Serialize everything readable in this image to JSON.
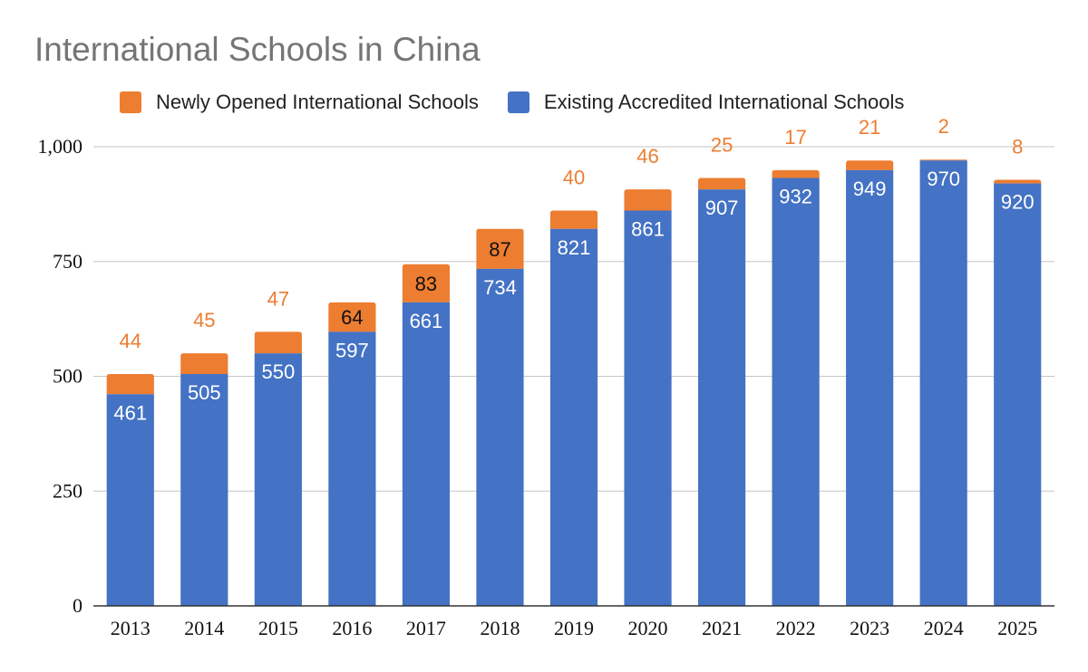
{
  "chart_data": {
    "type": "bar",
    "stacked": true,
    "title": "International Schools in China",
    "categories": [
      "2013",
      "2014",
      "2015",
      "2016",
      "2017",
      "2018",
      "2019",
      "2020",
      "2021",
      "2022",
      "2023",
      "2024",
      "2025"
    ],
    "series": [
      {
        "name": "Existing Accredited International Schools",
        "color": "#4472C4",
        "values": [
          461,
          505,
          550,
          597,
          661,
          734,
          821,
          861,
          907,
          932,
          949,
          970,
          920
        ]
      },
      {
        "name": "Newly Opened International Schools",
        "color": "#ED7D31",
        "values": [
          44,
          45,
          47,
          64,
          83,
          87,
          40,
          46,
          25,
          17,
          21,
          2,
          8
        ]
      }
    ],
    "legend_order": [
      "Newly Opened International Schools",
      "Existing Accredited International Schools"
    ],
    "legend_position": "top",
    "ylim": [
      0,
      1000
    ],
    "y_ticks": [
      0,
      250,
      500,
      750,
      1000
    ],
    "y_tick_labels": [
      "0",
      "250",
      "500",
      "750",
      "1,000"
    ],
    "grid": true,
    "xlabel": "",
    "ylabel": ""
  },
  "legend": {
    "items": [
      {
        "label": "Newly Opened International Schools",
        "color": "#ED7D31"
      },
      {
        "label": "Existing Accredited International Schools",
        "color": "#4472C4"
      }
    ]
  }
}
